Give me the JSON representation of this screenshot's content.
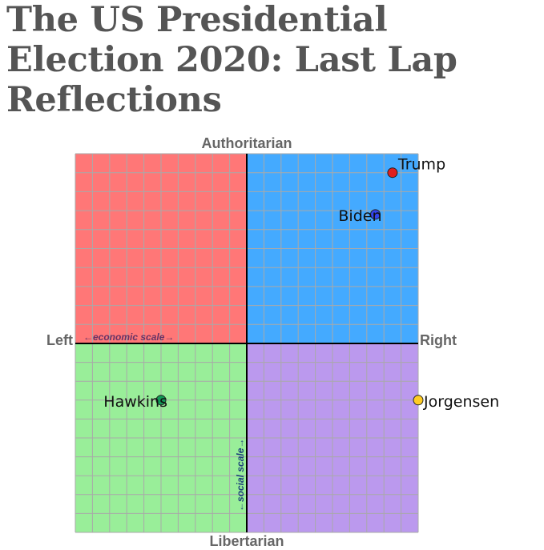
{
  "title": "The US Presidential Election 2020: Last Lap Reflections",
  "axes": {
    "top": "Authoritarian",
    "bottom": "Libertarian",
    "left": "Left",
    "right": "Right",
    "economic_scale": "←economic scale→",
    "social_scale": "←social scale→"
  },
  "grid": {
    "min": -10,
    "max": 10,
    "divisions": 20
  },
  "quadrant_colors": {
    "authoritarian_left": "#ff7777",
    "authoritarian_right": "#44aaff",
    "libertarian_left": "#99ee99",
    "libertarian_right": "#bb99ee"
  },
  "points": [
    {
      "name": "Trump",
      "x": 8.5,
      "y": 9,
      "color": "#e02020",
      "label_side": "right"
    },
    {
      "name": "Biden",
      "x": 7.5,
      "y": 6.8,
      "color": "#3344ee",
      "label_side": "left"
    },
    {
      "name": "Hawkins",
      "x": -5,
      "y": -3,
      "color": "#119955",
      "label_side": "left"
    },
    {
      "name": "Jorgensen",
      "x": 10,
      "y": -3,
      "color": "#ffcc22",
      "label_side": "right"
    }
  ]
}
